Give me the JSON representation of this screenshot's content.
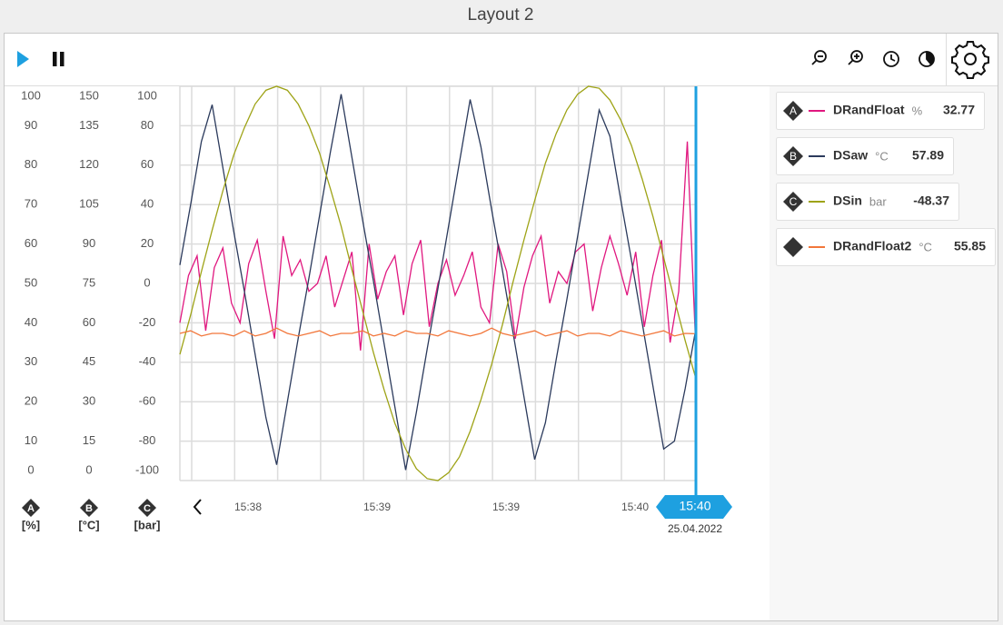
{
  "header": {
    "title": "Layout 2"
  },
  "chart_data": {
    "type": "line",
    "grid": true,
    "axes": [
      {
        "badge": "A",
        "unit": "[%]",
        "ylim": [
          0,
          100
        ],
        "yticks": [
          0,
          10,
          20,
          30,
          40,
          50,
          60,
          70,
          80,
          90,
          100
        ]
      },
      {
        "badge": "B",
        "unit": "[°C]",
        "ylim": [
          0,
          150
        ],
        "yticks": [
          0,
          15,
          30,
          45,
          60,
          75,
          90,
          105,
          120,
          135,
          150
        ]
      },
      {
        "badge": "C",
        "unit": "[bar]",
        "ylim": [
          -100,
          100
        ],
        "yticks": [
          -100,
          -80,
          -60,
          -40,
          -20,
          0,
          20,
          40,
          60,
          80,
          100
        ]
      }
    ],
    "x_labels": [
      "15:38",
      "15:39",
      "15:39",
      "15:40"
    ],
    "cursor": {
      "time": "15:40",
      "date": "25.04.2022"
    },
    "series": [
      {
        "name": "DRandFloat",
        "badge": "A",
        "axis": "A",
        "unit": "%",
        "current": 32.77,
        "color": "#e0177f",
        "values": [
          40,
          52,
          57,
          38,
          54,
          59,
          45,
          40,
          55,
          61,
          48,
          36,
          62,
          52,
          56,
          48,
          50,
          57,
          44,
          51,
          58,
          33,
          60,
          46,
          53,
          57,
          42,
          55,
          61,
          39,
          50,
          56,
          47,
          52,
          58,
          44,
          40,
          60,
          53,
          36,
          49,
          57,
          62,
          45,
          53,
          50,
          58,
          60,
          43,
          54,
          62,
          55,
          47,
          58,
          39,
          52,
          61,
          35,
          48,
          86,
          32.77
        ]
      },
      {
        "name": "DSaw",
        "badge": "B",
        "axis": "B",
        "unit": "°C",
        "current": 57.89,
        "color": "#2b3a5c",
        "values": [
          82,
          105,
          129,
          143,
          119,
          95,
          72,
          48,
          24,
          6,
          30,
          54,
          77,
          101,
          125,
          147,
          123,
          99,
          76,
          52,
          28,
          4,
          26,
          50,
          73,
          97,
          121,
          145,
          127,
          103,
          80,
          56,
          32,
          8,
          22,
          46,
          69,
          93,
          117,
          141,
          131,
          107,
          84,
          60,
          36,
          12,
          15,
          35,
          57.89
        ]
      },
      {
        "name": "DSin",
        "badge": "C",
        "axis": "C",
        "unit": "bar",
        "current": -48.37,
        "color": "#9ea316",
        "values": [
          -36,
          -16,
          6,
          27,
          47,
          65,
          79,
          91,
          98,
          100,
          98,
          91,
          80,
          66,
          48,
          29,
          7,
          -14,
          -35,
          -54,
          -71,
          -84,
          -94,
          -99,
          -100,
          -96,
          -88,
          -75,
          -59,
          -41,
          -21,
          1,
          22,
          42,
          61,
          76,
          88,
          96,
          100,
          99,
          93,
          83,
          70,
          53,
          34,
          13,
          -8,
          -29,
          -48.37
        ]
      },
      {
        "name": "DRandFloat2",
        "axis": "B",
        "unit": "°C",
        "current": 55.85,
        "color": "#f2763a",
        "values": [
          56,
          57,
          55,
          56,
          56,
          55,
          57,
          55,
          56,
          58,
          56,
          55,
          56,
          57,
          55,
          56,
          56,
          57,
          55,
          56,
          55,
          57,
          56,
          56,
          55,
          57,
          56,
          55,
          56,
          58,
          56,
          55,
          56,
          57,
          55,
          56,
          57,
          55,
          56,
          56,
          55,
          57,
          56,
          55,
          56,
          57,
          55,
          56,
          55.85
        ]
      }
    ]
  }
}
